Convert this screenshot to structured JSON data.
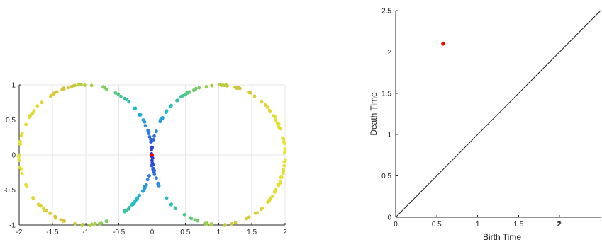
{
  "chart_data": [
    {
      "type": "scatter",
      "title": "",
      "xlabel": "",
      "ylabel": "",
      "xlim": [
        -2,
        2
      ],
      "ylim": [
        -1,
        1
      ],
      "grid": true,
      "x_ticks": [
        "-2",
        "-1.5",
        "-1",
        "-0.5",
        "0",
        "0.5",
        "1",
        "1.5",
        "2"
      ],
      "y_ticks": [
        "-1",
        "-0.5",
        "0",
        "0.5",
        "1"
      ],
      "shape": "figure-eight: two unit circles centered at (-1, 0) and (1, 0), colored by distance from origin",
      "colormap": [
        "#2b2bd4",
        "#2f7fe8",
        "#1ebad0",
        "#49c98a",
        "#a6cf3f",
        "#d9c43a",
        "#e6e22e"
      ],
      "highlight_point": {
        "x": 0,
        "y": 0,
        "color": "#ff0000"
      }
    },
    {
      "type": "scatter",
      "title": "",
      "xlabel": "Birth Time",
      "ylabel": "Death Time",
      "xlim": [
        0,
        2.5
      ],
      "ylim": [
        0,
        2.5
      ],
      "grid": false,
      "x_ticks": [
        "0",
        "0.5",
        "1",
        "1.5",
        "2",
        "2."
      ],
      "y_ticks": [
        "0",
        "0.5",
        "1",
        "1.5",
        "2",
        "2.5"
      ],
      "diagonal": [
        [
          0,
          0
        ],
        [
          2.5,
          2.5
        ]
      ],
      "points": [
        {
          "x": 0.58,
          "y": 2.1,
          "color": "#ff0000"
        }
      ]
    }
  ]
}
